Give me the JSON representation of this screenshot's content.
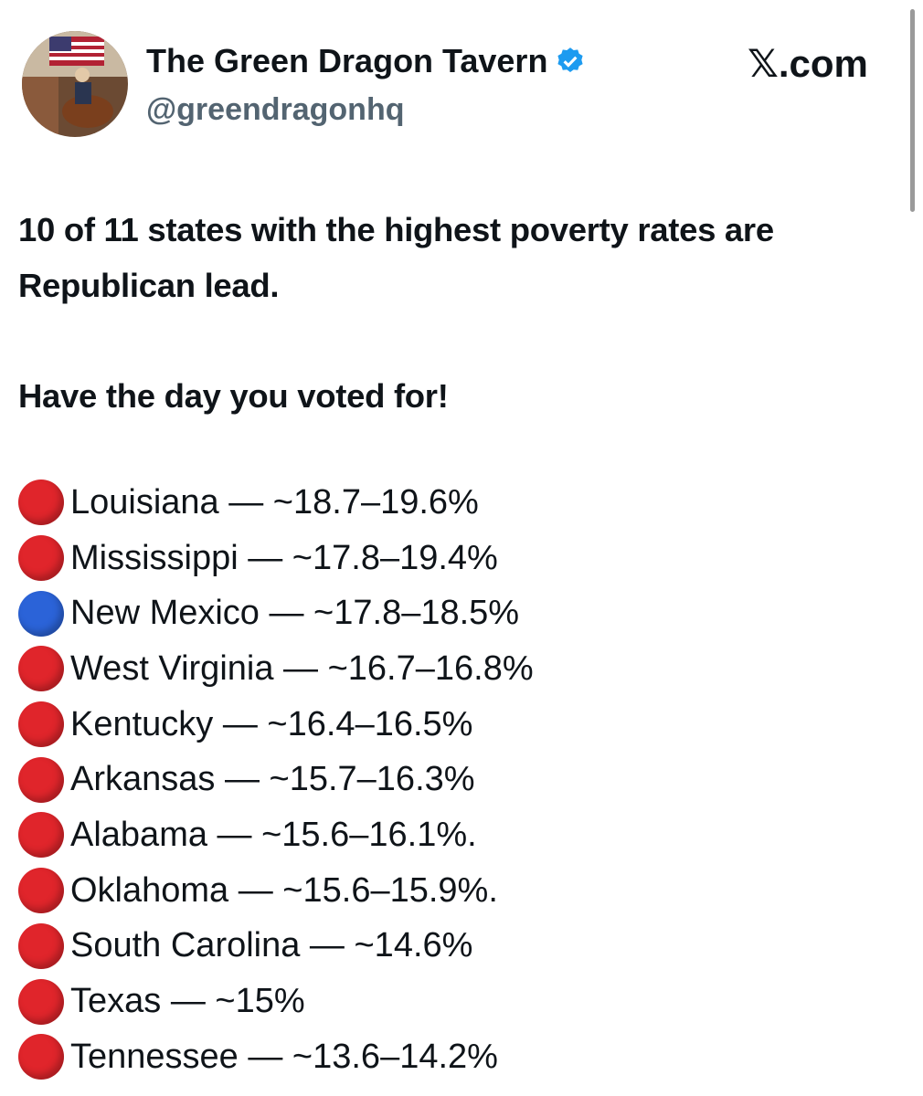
{
  "header": {
    "name": "The Green Dragon Tavern",
    "handle": "@greendragonhq",
    "site": "𝕏.com"
  },
  "tweet": {
    "paragraphs": [
      "10 of 11 states with the highest poverty rates are Republican lead.",
      "Have the day you voted for!"
    ],
    "items": [
      {
        "marker": "#e0252b",
        "text": "Louisiana — ~18.7–19.6%"
      },
      {
        "marker": "#e0252b",
        "text": "Mississippi — ~17.8–19.4%"
      },
      {
        "marker": "#2b63d8",
        "text": "New Mexico — ~17.8–18.5%"
      },
      {
        "marker": "#e0252b",
        "text": "West Virginia — ~16.7–16.8%"
      },
      {
        "marker": "#e0252b",
        "text": "Kentucky — ~16.4–16.5%"
      },
      {
        "marker": "#e0252b",
        "text": "Arkansas — ~15.7–16.3%"
      },
      {
        "marker": "#e0252b",
        "text": "Alabama — ~15.6–16.1%."
      },
      {
        "marker": "#e0252b",
        "text": "Oklahoma — ~15.6–15.9%."
      },
      {
        "marker": "#e0252b",
        "text": "South Carolina — ~14.6%"
      },
      {
        "marker": "#e0252b",
        "text": "Texas — ~15%"
      },
      {
        "marker": "#e0252b",
        "text": "Tennessee — ~13.6–14.2%"
      }
    ]
  }
}
